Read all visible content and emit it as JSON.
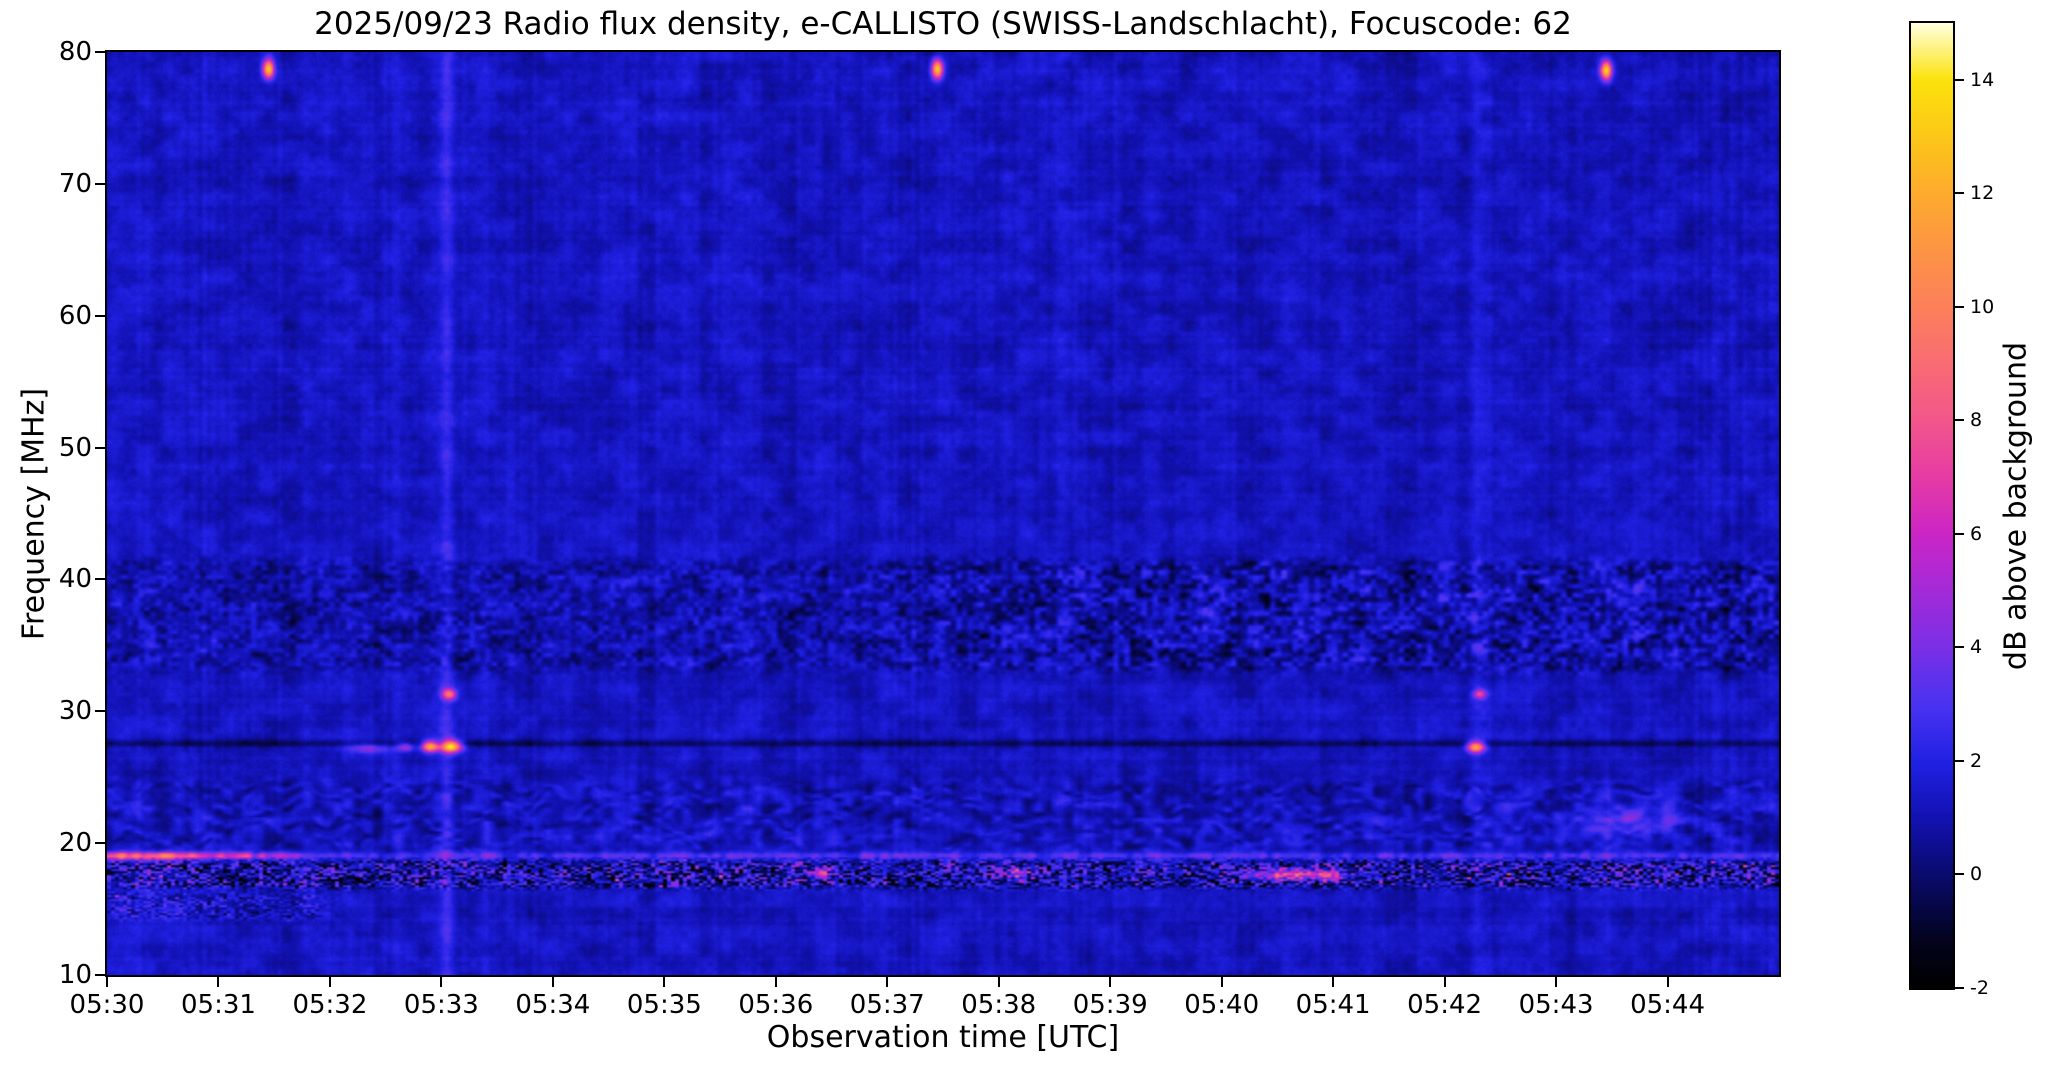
{
  "chart_data": {
    "type": "heatmap",
    "title": "2025/09/23  Radio flux density, e-CALLISTO (SWISS-Landschlacht), Focuscode: 62",
    "xlabel": "Observation time [UTC]",
    "ylabel": "Frequency [MHz]",
    "x_tick_labels": [
      "05:30",
      "05:31",
      "05:32",
      "05:33",
      "05:34",
      "05:35",
      "05:36",
      "05:37",
      "05:38",
      "05:39",
      "05:40",
      "05:41",
      "05:42",
      "05:43",
      "05:44"
    ],
    "x_tick_minutes": [
      0,
      1,
      2,
      3,
      4,
      5,
      6,
      7,
      8,
      9,
      10,
      11,
      12,
      13,
      14
    ],
    "x_range_minutes": [
      0,
      15
    ],
    "y_ticks": [
      10,
      20,
      30,
      40,
      50,
      60,
      70,
      80
    ],
    "ylim": [
      10,
      80
    ],
    "grid": false,
    "colorbar": {
      "label": "dB above background",
      "ticks": [
        -2,
        0,
        2,
        4,
        6,
        8,
        10,
        12,
        14
      ],
      "range": [
        -2,
        15
      ],
      "stops": [
        [
          -2,
          "#000000"
        ],
        [
          -1.2,
          "#03031c"
        ],
        [
          0,
          "#0a0a6e"
        ],
        [
          1,
          "#1212b2"
        ],
        [
          2,
          "#2121e4"
        ],
        [
          3,
          "#4a33f0"
        ],
        [
          4,
          "#7a2fe6"
        ],
        [
          5,
          "#a32ad8"
        ],
        [
          6,
          "#cb25c5"
        ],
        [
          7,
          "#e63ba4"
        ],
        [
          8,
          "#f2568b"
        ],
        [
          9,
          "#f96b73"
        ],
        [
          10,
          "#fc805a"
        ],
        [
          11,
          "#fd9443"
        ],
        [
          12,
          "#fdab2d"
        ],
        [
          13,
          "#fcc718"
        ],
        [
          14,
          "#fbe30c"
        ],
        [
          15,
          "#ffffe0"
        ]
      ]
    },
    "background": {
      "base_db": 1.3,
      "description": "dark blue background with faint noise and vertical streaking"
    },
    "bands": [
      {
        "name": "rfi-mottle-33-41MHz",
        "type": "mottle",
        "f_lo": 33,
        "f_hi": 41.5,
        "amp_left": 1.5,
        "amp_right": 2.2,
        "bias": -0.35
      },
      {
        "name": "wavy-noise-19-25MHz",
        "type": "wavy",
        "f_lo": 19.4,
        "f_hi": 24.8,
        "amp": 1.4
      },
      {
        "name": "rfi-speckle-17-19MHz",
        "type": "speckle",
        "f_lo": 16.6,
        "f_hi": 18.7,
        "amp": 3.3,
        "bias": -0.15
      },
      {
        "name": "carrier-line-19MHz",
        "type": "line",
        "freq": 19.05,
        "sigma": 0.18,
        "amp_early": 4.4,
        "amp_late": 1.9,
        "t_split": 1.7
      },
      {
        "name": "absorption-line-27.5MHz",
        "type": "darkline",
        "freq": 27.55,
        "sigma": 0.18,
        "amp": -1.6
      },
      {
        "name": "low-speckle-14-16MHz",
        "type": "speckle",
        "f_lo": 14.2,
        "f_hi": 16.3,
        "amp": 1.7,
        "bias": 0.2,
        "t_hi": 1.9
      }
    ],
    "bursts": [
      {
        "name": "cal-spike-0531",
        "t": 1.45,
        "f": 78.7,
        "a": 12,
        "st": 0.035,
        "sf": 0.5
      },
      {
        "name": "cal-spike-0537",
        "t": 7.45,
        "f": 78.7,
        "a": 12,
        "st": 0.035,
        "sf": 0.5
      },
      {
        "name": "cal-spike-0543",
        "t": 13.45,
        "f": 78.6,
        "a": 12,
        "st": 0.035,
        "sf": 0.5
      },
      {
        "name": "burst-0533-27MHz-a",
        "t": 2.9,
        "f": 27.35,
        "a": 11,
        "st": 0.055,
        "sf": 0.3
      },
      {
        "name": "burst-0533-27MHz-b",
        "t": 3.09,
        "f": 27.35,
        "a": 13,
        "st": 0.065,
        "sf": 0.33
      },
      {
        "name": "burst-0533-27MHz-c",
        "t": 2.68,
        "f": 27.3,
        "a": 4.5,
        "st": 0.05,
        "sf": 0.25
      },
      {
        "name": "burst-0533-31MHz",
        "t": 3.07,
        "f": 31.3,
        "a": 7.5,
        "st": 0.045,
        "sf": 0.28
      },
      {
        "name": "burst-0542-27MHz",
        "t": 12.28,
        "f": 27.3,
        "a": 10.5,
        "st": 0.055,
        "sf": 0.3
      },
      {
        "name": "burst-0542-31MHz",
        "t": 12.32,
        "f": 31.3,
        "a": 6,
        "st": 0.04,
        "sf": 0.25
      },
      {
        "name": "patch-0532-27MHz",
        "t": 2.35,
        "f": 27.2,
        "a": 3.2,
        "st": 0.14,
        "sf": 0.3
      },
      {
        "name": "rfi-blob-0540",
        "t": 10.55,
        "f": 17.6,
        "a": 6,
        "st": 0.22,
        "sf": 0.3
      },
      {
        "name": "rfi-blob-0541",
        "t": 10.95,
        "f": 17.5,
        "a": 5,
        "st": 0.12,
        "sf": 0.3
      },
      {
        "name": "rfi-blob-0538",
        "t": 8.2,
        "f": 17.6,
        "a": 4.5,
        "st": 0.1,
        "sf": 0.3
      },
      {
        "name": "rfi-blob-0536",
        "t": 6.4,
        "f": 17.7,
        "a": 4,
        "st": 0.1,
        "sf": 0.3
      },
      {
        "name": "blue-smudge-0543",
        "t": 13.6,
        "f": 21.8,
        "a": 2.2,
        "st": 0.35,
        "sf": 0.9
      },
      {
        "name": "line-start-bright",
        "t": 0.3,
        "f": 19.0,
        "a": 4,
        "st": 0.3,
        "sf": 0.25
      }
    ],
    "vertical_streaks": [
      {
        "t": 3.05,
        "a": 1.1,
        "st": 0.05
      },
      {
        "t": 12.3,
        "a": 0.9,
        "st": 0.05
      }
    ]
  }
}
